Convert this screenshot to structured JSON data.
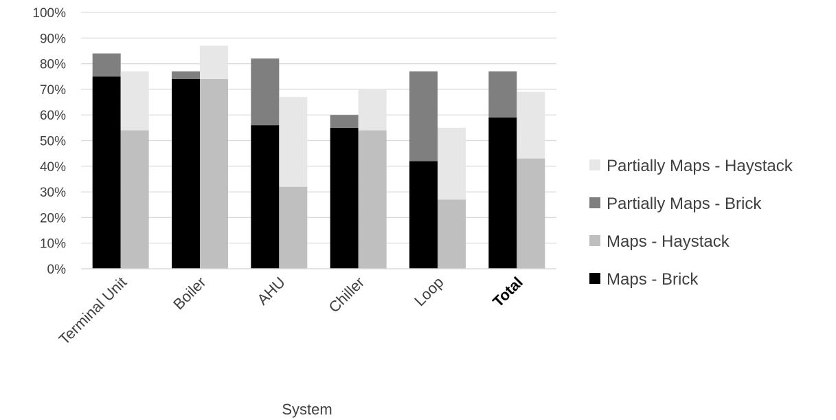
{
  "chart_data": {
    "type": "bar",
    "stacked_within_group": true,
    "categories": [
      "Terminal Unit",
      "Boiler",
      "AHU",
      "Chiller",
      "Loop",
      "Total"
    ],
    "bold_categories": [
      "Total"
    ],
    "xlabel": "System",
    "ylabel": "",
    "ylim": [
      0,
      100
    ],
    "y_ticks": [
      "0%",
      "10%",
      "20%",
      "30%",
      "40%",
      "50%",
      "60%",
      "70%",
      "80%",
      "90%",
      "100%"
    ],
    "y_tick_values": [
      0,
      10,
      20,
      30,
      40,
      50,
      60,
      70,
      80,
      90,
      100
    ],
    "grid": true,
    "legend_position": "right",
    "groups": [
      {
        "name": "Brick",
        "stack": [
          {
            "series": "Maps - Brick",
            "values": [
              75,
              74,
              56,
              55,
              42,
              59
            ],
            "color": "#000000"
          },
          {
            "series": "Partially Maps - Brick",
            "values": [
              9,
              3,
              26,
              5,
              35,
              18
            ],
            "color": "#7f7f7f"
          }
        ]
      },
      {
        "name": "Haystack",
        "stack": [
          {
            "series": "Maps - Haystack",
            "values": [
              54,
              74,
              32,
              54,
              27,
              43
            ],
            "color": "#bfbfbf"
          },
          {
            "series": "Partially Maps - Haystack",
            "values": [
              23,
              13,
              35,
              16,
              28,
              26
            ],
            "color": "#e7e7e7"
          }
        ]
      }
    ],
    "legend": [
      {
        "label": "Partially Maps - Haystack",
        "color": "#e7e7e7"
      },
      {
        "label": "Partially Maps - Brick",
        "color": "#7f7f7f"
      },
      {
        "label": "Maps - Haystack",
        "color": "#bfbfbf"
      },
      {
        "label": "Maps - Brick",
        "color": "#000000"
      }
    ]
  }
}
